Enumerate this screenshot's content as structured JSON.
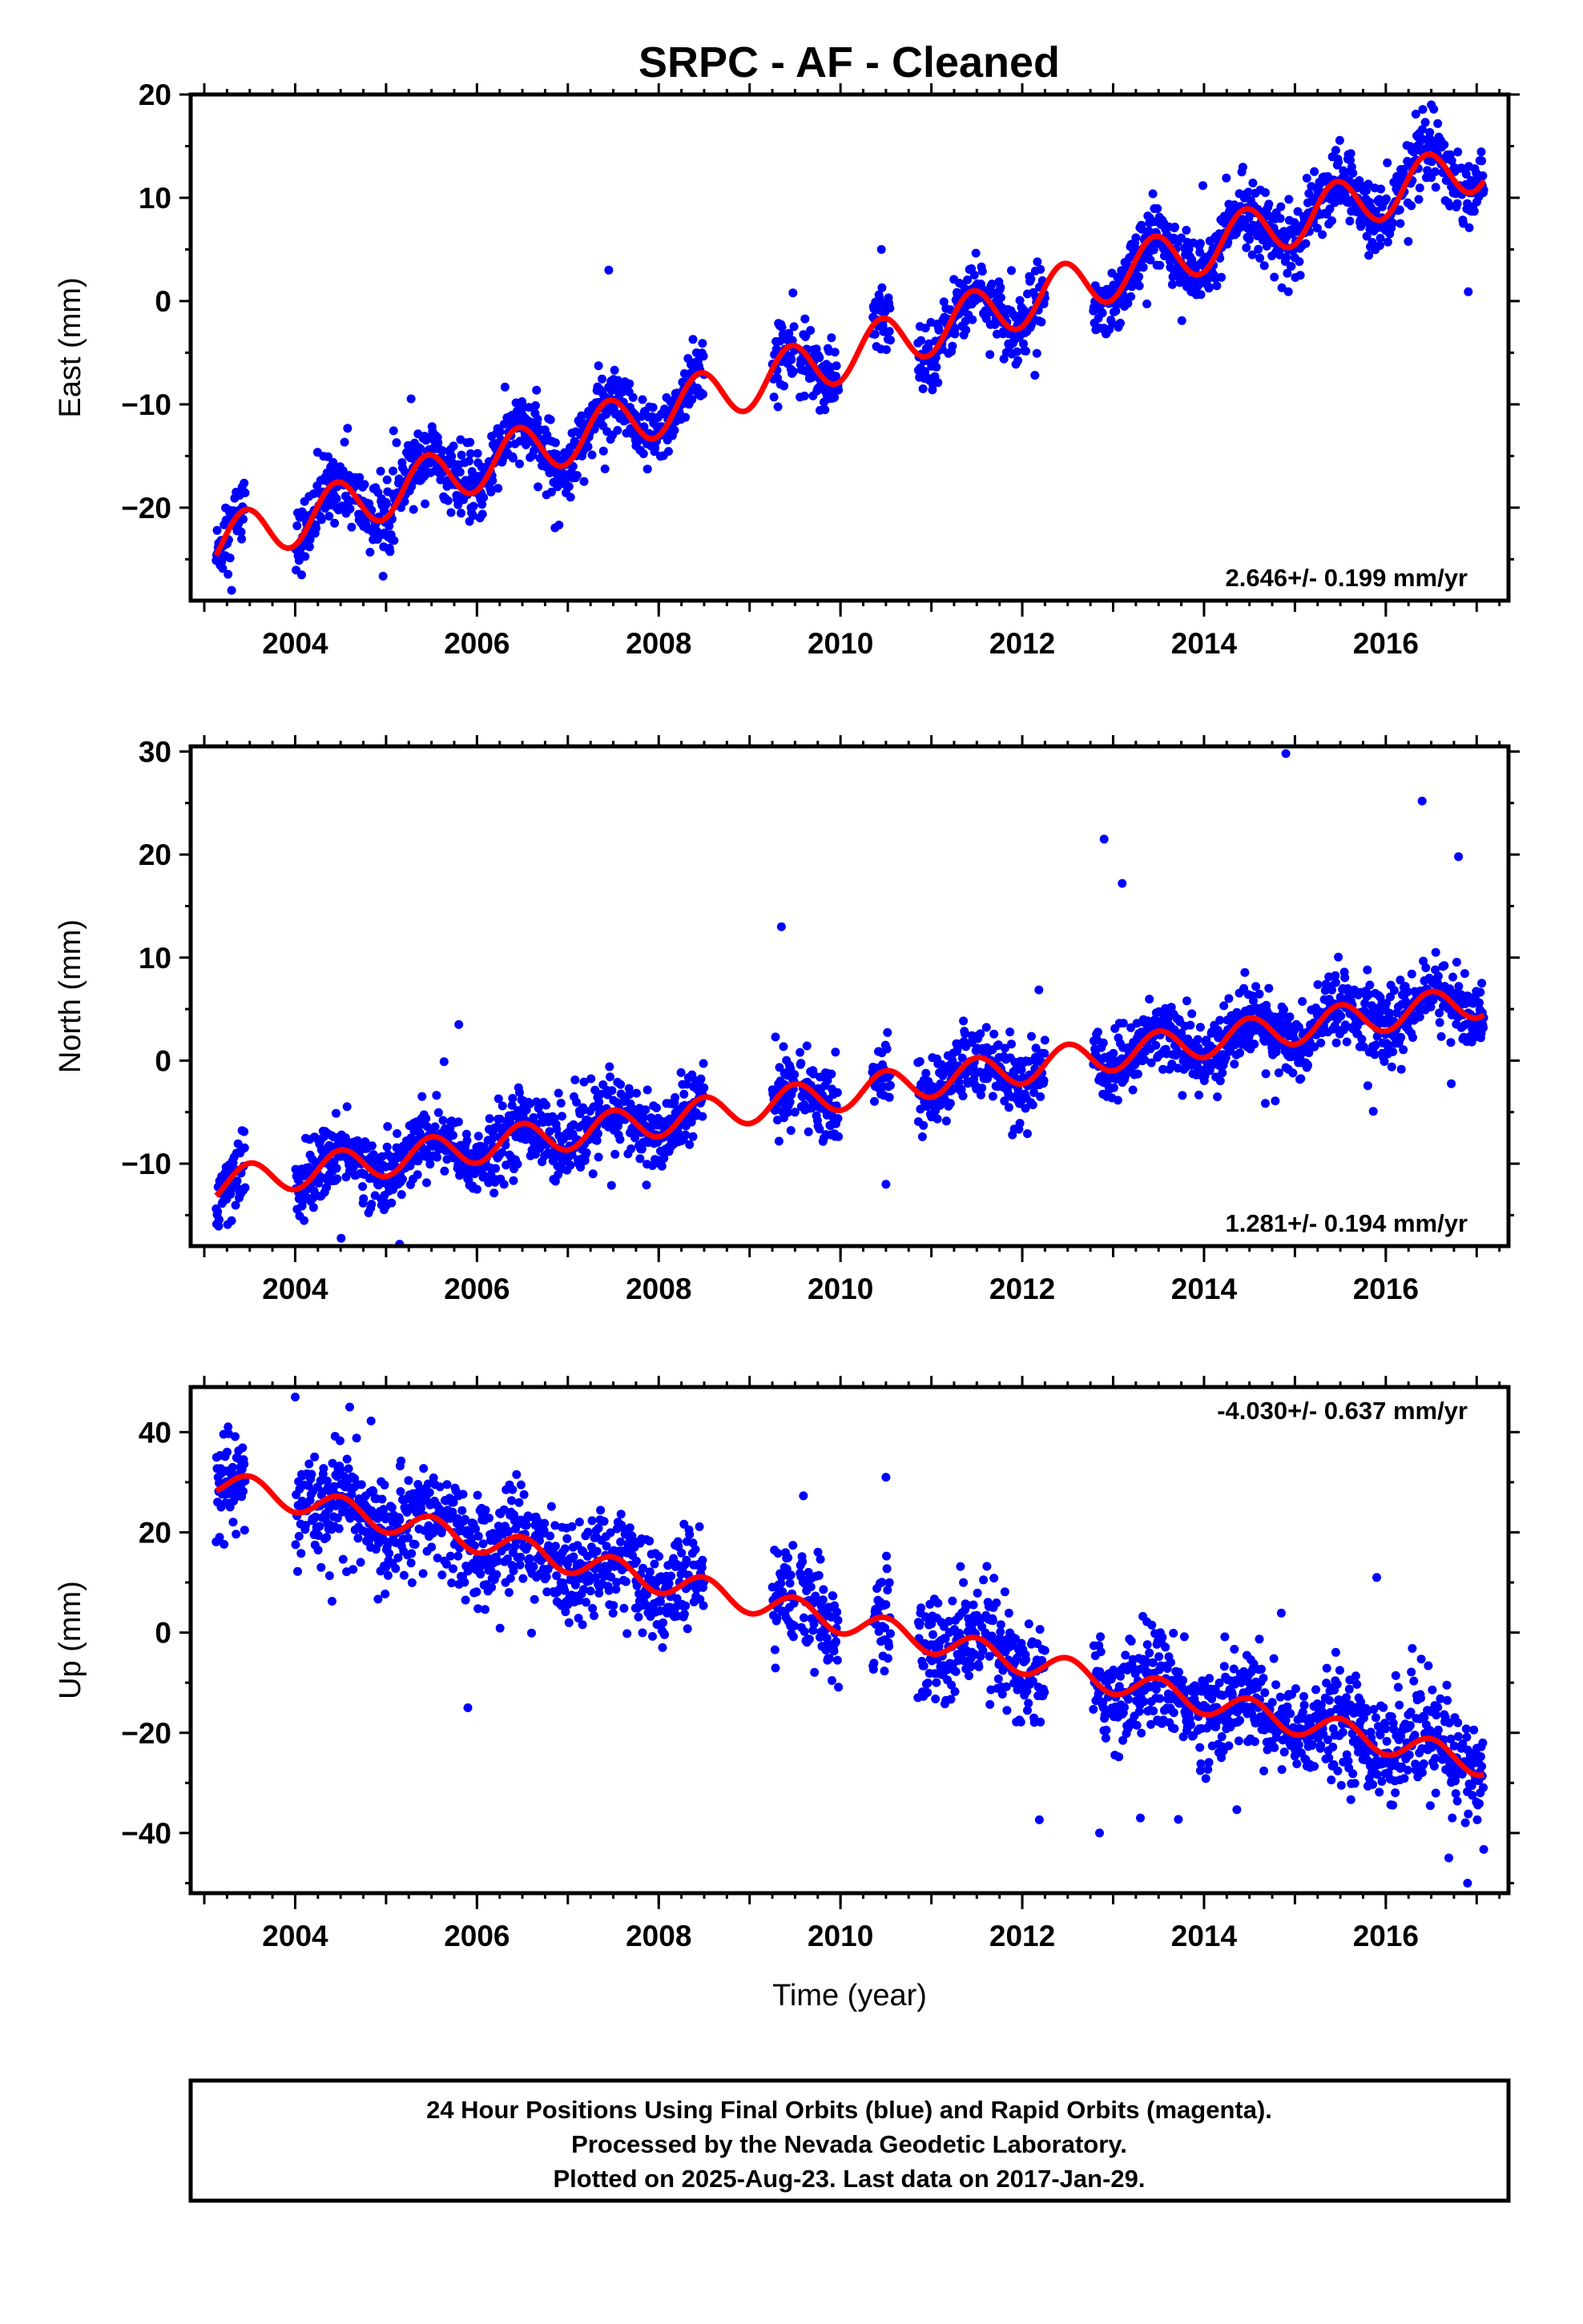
{
  "title": "SRPC  - AF - Cleaned",
  "caption_lines": [
    "24 Hour Positions Using Final Orbits (blue) and Rapid Orbits (magenta).",
    "Processed by the Nevada Geodetic Laboratory.",
    "Plotted on 2025-Aug-23. Last data on 2017-Jan-29."
  ],
  "colors": {
    "data_points": "#0000ff",
    "model_fit": "#ff0000",
    "frame": "#000000"
  },
  "chart_data": [
    {
      "type": "scatter",
      "name": "east",
      "ylabel": "East (mm)",
      "xlabel": "",
      "xlim": [
        2002.85,
        2017.35
      ],
      "ylim": [
        -29,
        20
      ],
      "x_ticks": [
        "2004",
        "2006",
        "2008",
        "2010",
        "2012",
        "2014",
        "2016"
      ],
      "y_ticks": [
        "-20",
        "-10",
        "0",
        "10",
        "20"
      ],
      "rate_label": "2.646+/- 0.199 mm/yr",
      "rate_position": "bottom-right",
      "model": {
        "t0": 2003.15,
        "y0": -23.5,
        "rate_mm_per_yr": 2.646,
        "annual_amplitude": 2.5,
        "annual_phase_peak": 0.45
      },
      "scatter": {
        "sigma": 1.6,
        "outliers": [
          [
            2007.45,
            3.0
          ],
          [
            2003.3,
            -28.0
          ],
          [
            2010.45,
            5.0
          ],
          [
            2016.5,
            19.0
          ]
        ]
      }
    },
    {
      "type": "scatter",
      "name": "north",
      "ylabel": "North (mm)",
      "xlabel": "",
      "xlim": [
        2002.85,
        2017.35
      ],
      "ylim": [
        -18,
        30.5
      ],
      "x_ticks": [
        "2004",
        "2006",
        "2008",
        "2010",
        "2012",
        "2014",
        "2016"
      ],
      "y_ticks": [
        "-10",
        "0",
        "10",
        "20",
        "30"
      ],
      "rate_label": "1.281+/- 0.194 mm/yr",
      "rate_position": "bottom-right",
      "model": {
        "t0": 2003.15,
        "y0": -12.0,
        "rate_mm_per_yr": 1.281,
        "annual_amplitude": 1.6,
        "annual_phase_peak": 0.5
      },
      "scatter": {
        "sigma": 1.7,
        "outliers": [
          [
            2009.35,
            13.0
          ],
          [
            2012.9,
            21.5
          ],
          [
            2014.9,
            29.8
          ],
          [
            2016.4,
            25.2
          ],
          [
            2013.1,
            17.2
          ],
          [
            2005.8,
            3.5
          ],
          [
            2010.5,
            -12.0
          ],
          [
            2016.8,
            19.8
          ]
        ]
      }
    },
    {
      "type": "scatter",
      "name": "up",
      "ylabel": "Up (mm)",
      "xlabel": "Time (year)",
      "xlim": [
        2002.85,
        2017.35
      ],
      "ylim": [
        -52,
        49
      ],
      "x_ticks": [
        "2004",
        "2006",
        "2008",
        "2010",
        "2012",
        "2014",
        "2016"
      ],
      "y_ticks": [
        "-40",
        "-20",
        "0",
        "20",
        "40"
      ],
      "rate_label": "-4.030+/- 0.637 mm/yr",
      "rate_position": "top-right",
      "model": {
        "t0": 2003.15,
        "y0": 30.0,
        "rate_mm_per_yr": -4.03,
        "annual_amplitude": 2.6,
        "annual_phase_peak": 0.5
      },
      "scatter": {
        "sigma": 5.0,
        "outliers": [
          [
            2004.0,
            47.0
          ],
          [
            2004.6,
            45.0
          ],
          [
            2005.9,
            -15.0
          ],
          [
            2012.85,
            -40.0
          ],
          [
            2013.3,
            -37.0
          ],
          [
            2016.9,
            -50.0
          ],
          [
            2010.5,
            31.0
          ],
          [
            2015.9,
            11.0
          ]
        ]
      }
    }
  ]
}
